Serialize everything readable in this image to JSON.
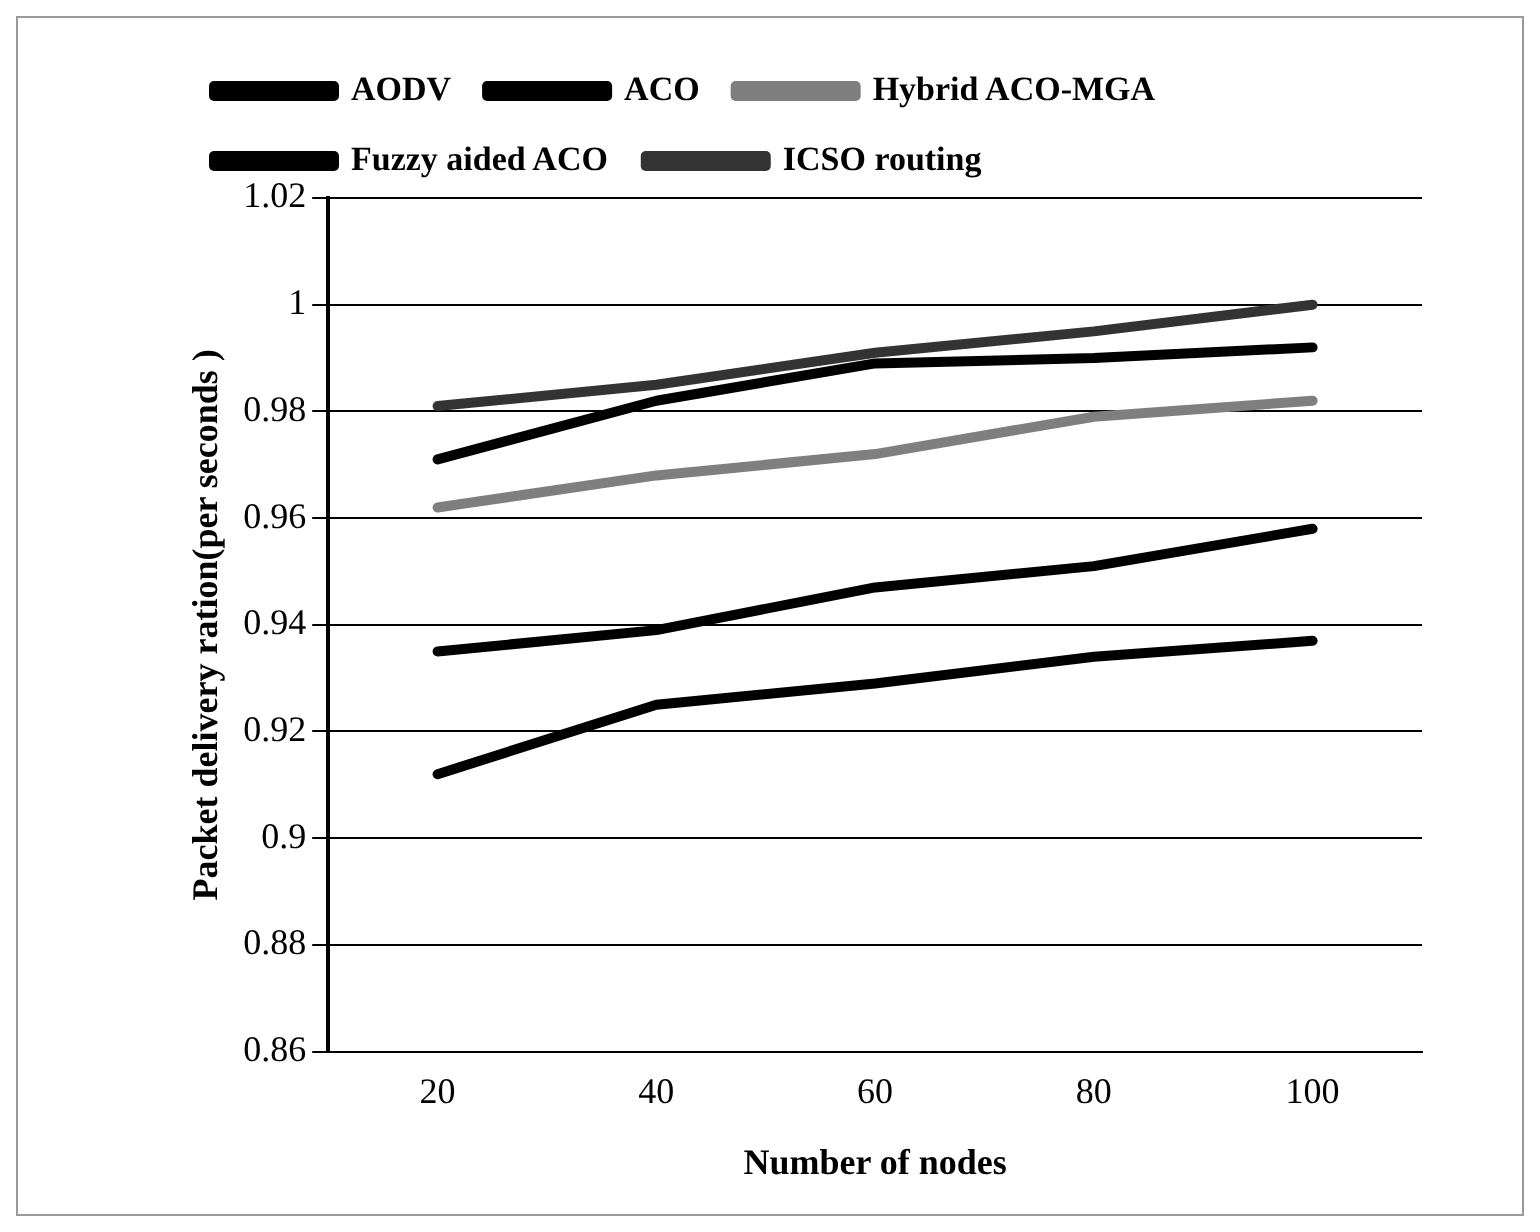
{
  "chart_data": {
    "type": "line",
    "xlabel": "Number of nodes",
    "ylabel": "Packet delivery ration(per seconds )",
    "categories": [
      "20",
      "40",
      "60",
      "80",
      "100"
    ],
    "series": [
      {
        "name": "AODV",
        "color": "#000000",
        "values": [
          0.912,
          0.925,
          0.929,
          0.934,
          0.937
        ]
      },
      {
        "name": "ACO",
        "color": "#000000",
        "values": [
          0.935,
          0.939,
          0.947,
          0.951,
          0.958
        ]
      },
      {
        "name": "Hybrid ACO-MGA",
        "color": "#7f7f7f",
        "values": [
          0.962,
          0.968,
          0.972,
          0.979,
          0.982
        ]
      },
      {
        "name": "Fuzzy aided ACO",
        "color": "#000000",
        "values": [
          0.971,
          0.982,
          0.989,
          0.99,
          0.992
        ]
      },
      {
        "name": "ICSO routing",
        "color": "#333333",
        "values": [
          0.981,
          0.985,
          0.991,
          0.995,
          1.0
        ]
      }
    ],
    "ylim": [
      0.86,
      1.02
    ],
    "yticks": [
      0.86,
      0.88,
      0.9,
      0.92,
      0.94,
      0.96,
      0.98,
      1,
      1.02
    ],
    "grid": "y",
    "legend": "top",
    "marker": "none",
    "line_style": "solid"
  }
}
